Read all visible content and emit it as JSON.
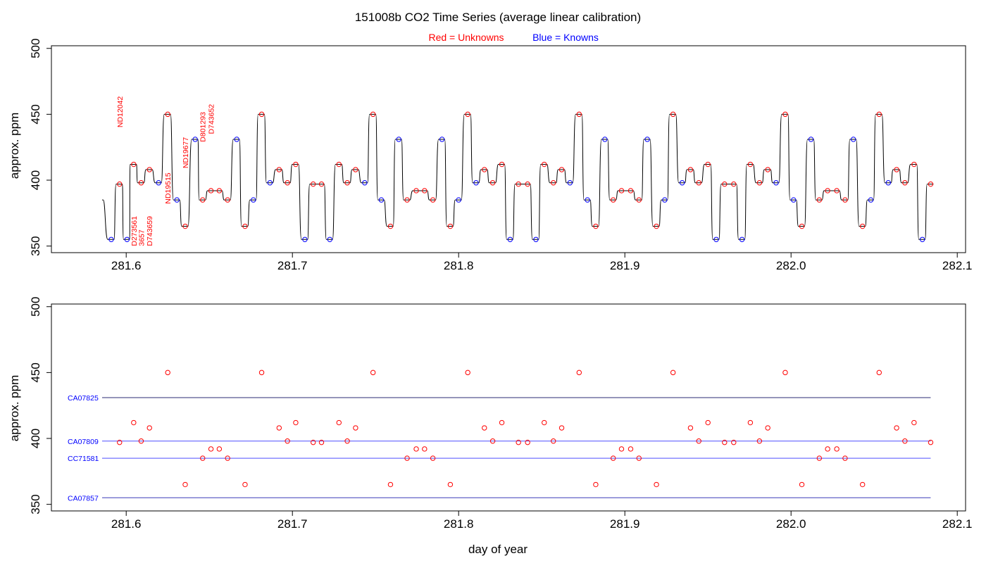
{
  "figure": {
    "title": "151008b   CO2 Time Series (average linear calibration)",
    "legend": {
      "unknowns_label": "Red = Unknowns",
      "knowns_label": "Blue = Knowns",
      "unknowns_color": "#ff0000",
      "knowns_color": "#0000ff"
    }
  },
  "chart_data": [
    {
      "type": "line",
      "panel": "top",
      "ylabel": "approx. ppm",
      "xlabel": "",
      "xlim": [
        281.555,
        282.105
      ],
      "ylim": [
        345,
        502
      ],
      "xticks": [
        281.6,
        281.7,
        281.8,
        281.9,
        282.0,
        282.1
      ],
      "xtick_labels": [
        "281.6",
        "281.7",
        "281.8",
        "281.9",
        "282.0",
        "282.1"
      ],
      "yticks": [
        350,
        400,
        450,
        500
      ],
      "ytick_labels": [
        "350",
        "400",
        "450",
        "500"
      ],
      "trace_start": {
        "x": 281.5855,
        "y": 385
      },
      "points": [
        {
          "x": 281.591,
          "y": 355,
          "kind": "known"
        },
        {
          "x": 281.596,
          "y": 397,
          "kind": "unknown"
        },
        {
          "x": 281.6005,
          "y": 355,
          "kind": "known"
        },
        {
          "x": 281.6045,
          "y": 412,
          "kind": "unknown"
        },
        {
          "x": 281.609,
          "y": 398,
          "kind": "unknown"
        },
        {
          "x": 281.614,
          "y": 408,
          "kind": "unknown"
        },
        {
          "x": 281.6195,
          "y": 398,
          "kind": "known"
        },
        {
          "x": 281.625,
          "y": 450,
          "kind": "unknown"
        },
        {
          "x": 281.6305,
          "y": 385,
          "kind": "known"
        },
        {
          "x": 281.6355,
          "y": 365,
          "kind": "unknown"
        },
        {
          "x": 281.6415,
          "y": 431,
          "kind": "known"
        },
        {
          "x": 281.646,
          "y": 385,
          "kind": "unknown"
        },
        {
          "x": 281.651,
          "y": 392,
          "kind": "unknown"
        },
        {
          "x": 281.656,
          "y": 392,
          "kind": "unknown"
        },
        {
          "x": 281.661,
          "y": 385,
          "kind": "unknown"
        },
        {
          "x": 281.6665,
          "y": 431,
          "kind": "known"
        },
        {
          "x": 281.6715,
          "y": 365,
          "kind": "unknown"
        },
        {
          "x": 281.6765,
          "y": 385,
          "kind": "known"
        },
        {
          "x": 281.6815,
          "y": 450,
          "kind": "unknown"
        },
        {
          "x": 281.6865,
          "y": 398,
          "kind": "known"
        },
        {
          "x": 281.692,
          "y": 408,
          "kind": "unknown"
        },
        {
          "x": 281.697,
          "y": 398,
          "kind": "unknown"
        },
        {
          "x": 281.702,
          "y": 412,
          "kind": "unknown"
        },
        {
          "x": 281.7075,
          "y": 355,
          "kind": "known"
        },
        {
          "x": 281.7125,
          "y": 397,
          "kind": "unknown"
        },
        {
          "x": 281.7175,
          "y": 397,
          "kind": "unknown"
        },
        {
          "x": 281.7225,
          "y": 355,
          "kind": "known"
        },
        {
          "x": 281.728,
          "y": 412,
          "kind": "unknown"
        },
        {
          "x": 281.733,
          "y": 398,
          "kind": "unknown"
        },
        {
          "x": 281.738,
          "y": 408,
          "kind": "unknown"
        },
        {
          "x": 281.7435,
          "y": 398,
          "kind": "known"
        },
        {
          "x": 281.7485,
          "y": 450,
          "kind": "unknown"
        },
        {
          "x": 281.7535,
          "y": 385,
          "kind": "known"
        },
        {
          "x": 281.759,
          "y": 365,
          "kind": "unknown"
        },
        {
          "x": 281.764,
          "y": 431,
          "kind": "known"
        },
        {
          "x": 281.769,
          "y": 385,
          "kind": "unknown"
        },
        {
          "x": 281.7745,
          "y": 392,
          "kind": "unknown"
        },
        {
          "x": 281.7795,
          "y": 392,
          "kind": "unknown"
        },
        {
          "x": 281.7845,
          "y": 385,
          "kind": "unknown"
        },
        {
          "x": 281.79,
          "y": 431,
          "kind": "known"
        },
        {
          "x": 281.795,
          "y": 365,
          "kind": "unknown"
        },
        {
          "x": 281.8,
          "y": 385,
          "kind": "known"
        },
        {
          "x": 281.8055,
          "y": 450,
          "kind": "unknown"
        },
        {
          "x": 281.8105,
          "y": 398,
          "kind": "known"
        },
        {
          "x": 281.8155,
          "y": 408,
          "kind": "unknown"
        },
        {
          "x": 281.8205,
          "y": 398,
          "kind": "unknown"
        },
        {
          "x": 281.826,
          "y": 412,
          "kind": "unknown"
        },
        {
          "x": 281.831,
          "y": 355,
          "kind": "known"
        },
        {
          "x": 281.836,
          "y": 397,
          "kind": "unknown"
        },
        {
          "x": 281.8415,
          "y": 397,
          "kind": "unknown"
        },
        {
          "x": 281.8465,
          "y": 355,
          "kind": "known"
        },
        {
          "x": 281.8515,
          "y": 412,
          "kind": "unknown"
        },
        {
          "x": 281.857,
          "y": 398,
          "kind": "unknown"
        },
        {
          "x": 281.862,
          "y": 408,
          "kind": "unknown"
        },
        {
          "x": 281.867,
          "y": 398,
          "kind": "known"
        },
        {
          "x": 281.8725,
          "y": 450,
          "kind": "unknown"
        },
        {
          "x": 281.8775,
          "y": 385,
          "kind": "known"
        },
        {
          "x": 281.8825,
          "y": 365,
          "kind": "unknown"
        },
        {
          "x": 281.888,
          "y": 431,
          "kind": "known"
        },
        {
          "x": 281.893,
          "y": 385,
          "kind": "unknown"
        },
        {
          "x": 281.898,
          "y": 392,
          "kind": "unknown"
        },
        {
          "x": 281.9035,
          "y": 392,
          "kind": "unknown"
        },
        {
          "x": 281.9085,
          "y": 385,
          "kind": "unknown"
        },
        {
          "x": 281.9135,
          "y": 431,
          "kind": "known"
        },
        {
          "x": 281.919,
          "y": 365,
          "kind": "unknown"
        },
        {
          "x": 281.924,
          "y": 385,
          "kind": "known"
        },
        {
          "x": 281.929,
          "y": 450,
          "kind": "unknown"
        },
        {
          "x": 281.9345,
          "y": 398,
          "kind": "known"
        },
        {
          "x": 281.9395,
          "y": 408,
          "kind": "unknown"
        },
        {
          "x": 281.9445,
          "y": 398,
          "kind": "unknown"
        },
        {
          "x": 281.95,
          "y": 412,
          "kind": "unknown"
        },
        {
          "x": 281.955,
          "y": 355,
          "kind": "known"
        },
        {
          "x": 281.96,
          "y": 397,
          "kind": "unknown"
        },
        {
          "x": 281.9655,
          "y": 397,
          "kind": "unknown"
        },
        {
          "x": 281.9705,
          "y": 355,
          "kind": "known"
        },
        {
          "x": 281.9755,
          "y": 412,
          "kind": "unknown"
        },
        {
          "x": 281.981,
          "y": 398,
          "kind": "unknown"
        },
        {
          "x": 281.986,
          "y": 408,
          "kind": "unknown"
        },
        {
          "x": 281.991,
          "y": 398,
          "kind": "known"
        },
        {
          "x": 281.9965,
          "y": 450,
          "kind": "unknown"
        },
        {
          "x": 282.0015,
          "y": 385,
          "kind": "known"
        },
        {
          "x": 282.0065,
          "y": 365,
          "kind": "unknown"
        },
        {
          "x": 282.012,
          "y": 431,
          "kind": "known"
        },
        {
          "x": 282.017,
          "y": 385,
          "kind": "unknown"
        },
        {
          "x": 282.022,
          "y": 392,
          "kind": "unknown"
        },
        {
          "x": 282.0275,
          "y": 392,
          "kind": "unknown"
        },
        {
          "x": 282.0325,
          "y": 385,
          "kind": "unknown"
        },
        {
          "x": 282.0375,
          "y": 431,
          "kind": "known"
        },
        {
          "x": 282.043,
          "y": 365,
          "kind": "unknown"
        },
        {
          "x": 282.048,
          "y": 385,
          "kind": "known"
        },
        {
          "x": 282.053,
          "y": 450,
          "kind": "unknown"
        },
        {
          "x": 282.0585,
          "y": 398,
          "kind": "known"
        },
        {
          "x": 282.0635,
          "y": 408,
          "kind": "unknown"
        },
        {
          "x": 282.0685,
          "y": 398,
          "kind": "unknown"
        },
        {
          "x": 282.074,
          "y": 412,
          "kind": "unknown"
        },
        {
          "x": 282.079,
          "y": 355,
          "kind": "known"
        },
        {
          "x": 282.084,
          "y": 397,
          "kind": "unknown"
        }
      ],
      "annotations": [
        {
          "text": "ND12042",
          "x": 281.596,
          "y": 440
        },
        {
          "text": "D273561",
          "x": 281.6045,
          "y": 350
        },
        {
          "text": "3657",
          "x": 281.609,
          "y": 350
        },
        {
          "text": "D743659",
          "x": 281.614,
          "y": 350
        },
        {
          "text": "ND19515",
          "x": 281.625,
          "y": 382
        },
        {
          "text": "ND19677",
          "x": 281.6355,
          "y": 409
        },
        {
          "text": "D801293",
          "x": 281.646,
          "y": 429
        },
        {
          "text": "D743652",
          "x": 281.651,
          "y": 435
        }
      ]
    },
    {
      "type": "scatter",
      "panel": "bottom",
      "ylabel": "approx. ppm",
      "xlabel": "day of year",
      "xlim": [
        281.555,
        282.105
      ],
      "ylim": [
        345,
        502
      ],
      "xticks": [
        281.6,
        281.7,
        281.8,
        281.9,
        282.0,
        282.1
      ],
      "xtick_labels": [
        "281.6",
        "281.7",
        "281.8",
        "281.9",
        "282.0",
        "282.1"
      ],
      "yticks": [
        350,
        400,
        450,
        500
      ],
      "ytick_labels": [
        "350",
        "400",
        "450",
        "500"
      ],
      "reference_lines": [
        {
          "name": "CA07825",
          "y": 431,
          "x_start": 281.5855,
          "x_end": 282.084,
          "color": "#2b2b73"
        },
        {
          "name": "CA07809",
          "y": 398,
          "x_start": 281.5855,
          "x_end": 282.084,
          "color": "#4f4fff"
        },
        {
          "name": "CC71581",
          "y": 385,
          "x_start": 281.5855,
          "x_end": 282.084,
          "color": "#4f4fff"
        },
        {
          "name": "CA07857",
          "y": 355,
          "x_start": 281.5855,
          "x_end": 282.084,
          "color": "#3a3ab8"
        }
      ],
      "points": [
        {
          "x": 281.596,
          "y": 397
        },
        {
          "x": 281.6045,
          "y": 412
        },
        {
          "x": 281.609,
          "y": 398
        },
        {
          "x": 281.614,
          "y": 408
        },
        {
          "x": 281.625,
          "y": 450
        },
        {
          "x": 281.6355,
          "y": 365
        },
        {
          "x": 281.646,
          "y": 385
        },
        {
          "x": 281.651,
          "y": 392
        },
        {
          "x": 281.656,
          "y": 392
        },
        {
          "x": 281.661,
          "y": 385
        },
        {
          "x": 281.6715,
          "y": 365
        },
        {
          "x": 281.6815,
          "y": 450
        },
        {
          "x": 281.692,
          "y": 408
        },
        {
          "x": 281.697,
          "y": 398
        },
        {
          "x": 281.702,
          "y": 412
        },
        {
          "x": 281.7125,
          "y": 397
        },
        {
          "x": 281.7175,
          "y": 397
        },
        {
          "x": 281.728,
          "y": 412
        },
        {
          "x": 281.733,
          "y": 398
        },
        {
          "x": 281.738,
          "y": 408
        },
        {
          "x": 281.7485,
          "y": 450
        },
        {
          "x": 281.759,
          "y": 365
        },
        {
          "x": 281.769,
          "y": 385
        },
        {
          "x": 281.7745,
          "y": 392
        },
        {
          "x": 281.7795,
          "y": 392
        },
        {
          "x": 281.7845,
          "y": 385
        },
        {
          "x": 281.795,
          "y": 365
        },
        {
          "x": 281.8055,
          "y": 450
        },
        {
          "x": 281.8155,
          "y": 408
        },
        {
          "x": 281.8205,
          "y": 398
        },
        {
          "x": 281.826,
          "y": 412
        },
        {
          "x": 281.836,
          "y": 397
        },
        {
          "x": 281.8415,
          "y": 397
        },
        {
          "x": 281.8515,
          "y": 412
        },
        {
          "x": 281.857,
          "y": 398
        },
        {
          "x": 281.862,
          "y": 408
        },
        {
          "x": 281.8725,
          "y": 450
        },
        {
          "x": 281.8825,
          "y": 365
        },
        {
          "x": 281.893,
          "y": 385
        },
        {
          "x": 281.898,
          "y": 392
        },
        {
          "x": 281.9035,
          "y": 392
        },
        {
          "x": 281.9085,
          "y": 385
        },
        {
          "x": 281.919,
          "y": 365
        },
        {
          "x": 281.929,
          "y": 450
        },
        {
          "x": 281.9395,
          "y": 408
        },
        {
          "x": 281.9445,
          "y": 398
        },
        {
          "x": 281.95,
          "y": 412
        },
        {
          "x": 281.96,
          "y": 397
        },
        {
          "x": 281.9655,
          "y": 397
        },
        {
          "x": 281.9755,
          "y": 412
        },
        {
          "x": 281.981,
          "y": 398
        },
        {
          "x": 281.986,
          "y": 408
        },
        {
          "x": 281.9965,
          "y": 450
        },
        {
          "x": 282.0065,
          "y": 365
        },
        {
          "x": 282.017,
          "y": 385
        },
        {
          "x": 282.022,
          "y": 392
        },
        {
          "x": 282.0275,
          "y": 392
        },
        {
          "x": 282.0325,
          "y": 385
        },
        {
          "x": 282.043,
          "y": 365
        },
        {
          "x": 282.053,
          "y": 450
        },
        {
          "x": 282.0635,
          "y": 408
        },
        {
          "x": 282.0685,
          "y": 398
        },
        {
          "x": 282.074,
          "y": 412
        },
        {
          "x": 282.084,
          "y": 397
        }
      ]
    }
  ]
}
